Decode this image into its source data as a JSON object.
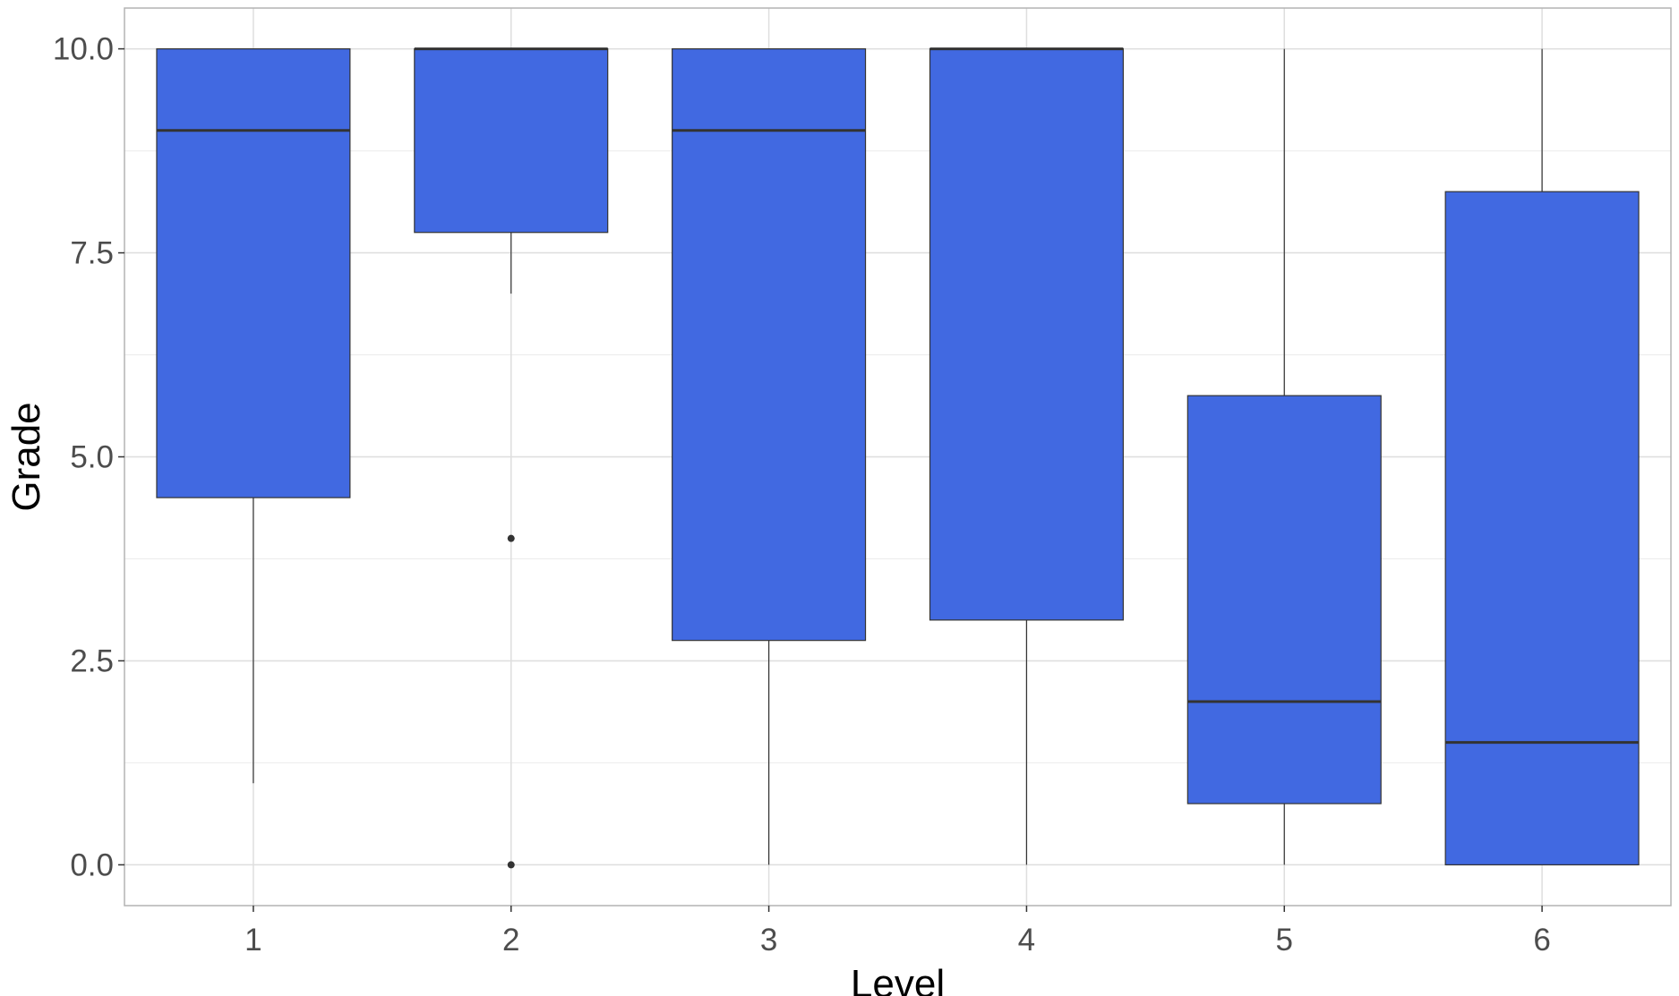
{
  "chart_data": {
    "type": "boxplot",
    "xlabel": "Level",
    "ylabel": "Grade",
    "ylim": [
      -0.5,
      10.5
    ],
    "y_ticks": [
      0.0,
      2.5,
      5.0,
      7.5,
      10.0
    ],
    "y_tick_labels": [
      "0.0",
      "2.5",
      "5.0",
      "7.5",
      "10.0"
    ],
    "categories": [
      "1",
      "2",
      "3",
      "4",
      "5",
      "6"
    ],
    "grid": true,
    "box_color": "#4169E1",
    "boxes": [
      {
        "level": "1",
        "min": 1.0,
        "q1": 4.5,
        "median": 9.0,
        "q3": 10.0,
        "max": 10.0,
        "outliers": []
      },
      {
        "level": "2",
        "min": 7.0,
        "q1": 7.75,
        "median": 10.0,
        "q3": 10.0,
        "max": 10.0,
        "outliers": [
          4.0,
          0.0
        ]
      },
      {
        "level": "3",
        "min": 0.0,
        "q1": 2.75,
        "median": 9.0,
        "q3": 10.0,
        "max": 10.0,
        "outliers": []
      },
      {
        "level": "4",
        "min": 0.0,
        "q1": 3.0,
        "median": 10.0,
        "q3": 10.0,
        "max": 10.0,
        "outliers": []
      },
      {
        "level": "5",
        "min": 0.0,
        "q1": 0.75,
        "median": 2.0,
        "q3": 5.75,
        "max": 10.0,
        "outliers": []
      },
      {
        "level": "6",
        "min": 0.0,
        "q1": 0.0,
        "median": 1.5,
        "q3": 8.25,
        "max": 10.0,
        "outliers": []
      }
    ]
  }
}
